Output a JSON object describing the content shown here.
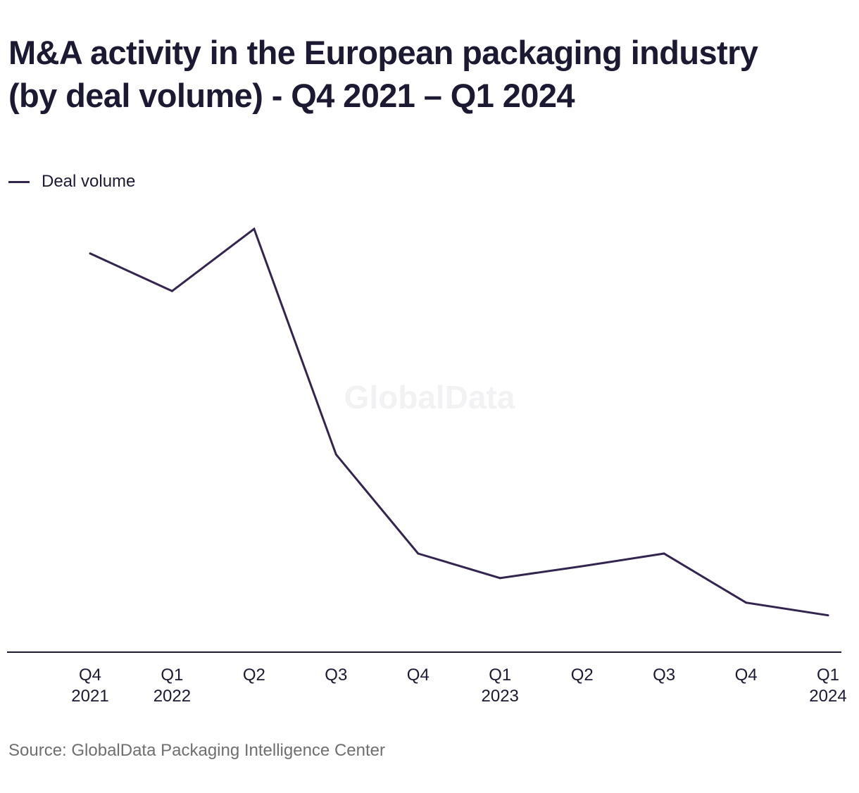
{
  "page": {
    "title_line1": "M&A activity in the European packaging industry",
    "title_line2": "(by deal volume) - Q4 2021 – Q1 2024",
    "source": "Source: GlobalData Packaging Intelligence Center",
    "watermark": "GlobalData"
  },
  "colors": {
    "series": "#33254f",
    "axis": "#1c1a33",
    "text": "#1c1a33",
    "source_text": "#6f6f6f",
    "watermark": "#f2f2f4"
  },
  "chart_data": {
    "type": "line",
    "title": "M&A activity in the European packaging industry (by deal volume) - Q4 2021 – Q1 2024",
    "xlabel": "",
    "ylabel": "",
    "grid": false,
    "legend_position": "top-left",
    "y_axis_visible": false,
    "ylim": [
      0,
      1
    ],
    "categories": [
      {
        "line1": "Q4",
        "line2": "2021"
      },
      {
        "line1": "Q1",
        "line2": "2022"
      },
      {
        "line1": "Q2",
        "line2": ""
      },
      {
        "line1": "Q3",
        "line2": ""
      },
      {
        "line1": "Q4",
        "line2": ""
      },
      {
        "line1": "Q1",
        "line2": "2023"
      },
      {
        "line1": "Q2",
        "line2": ""
      },
      {
        "line1": "Q3",
        "line2": ""
      },
      {
        "line1": "Q4",
        "line2": ""
      },
      {
        "line1": "Q1",
        "line2": "2024"
      }
    ],
    "series": [
      {
        "name": "Deal volume",
        "values": [
          0.942,
          0.853,
          1.0,
          0.467,
          0.233,
          0.175,
          0.203,
          0.233,
          0.117,
          0.087
        ]
      }
    ]
  }
}
